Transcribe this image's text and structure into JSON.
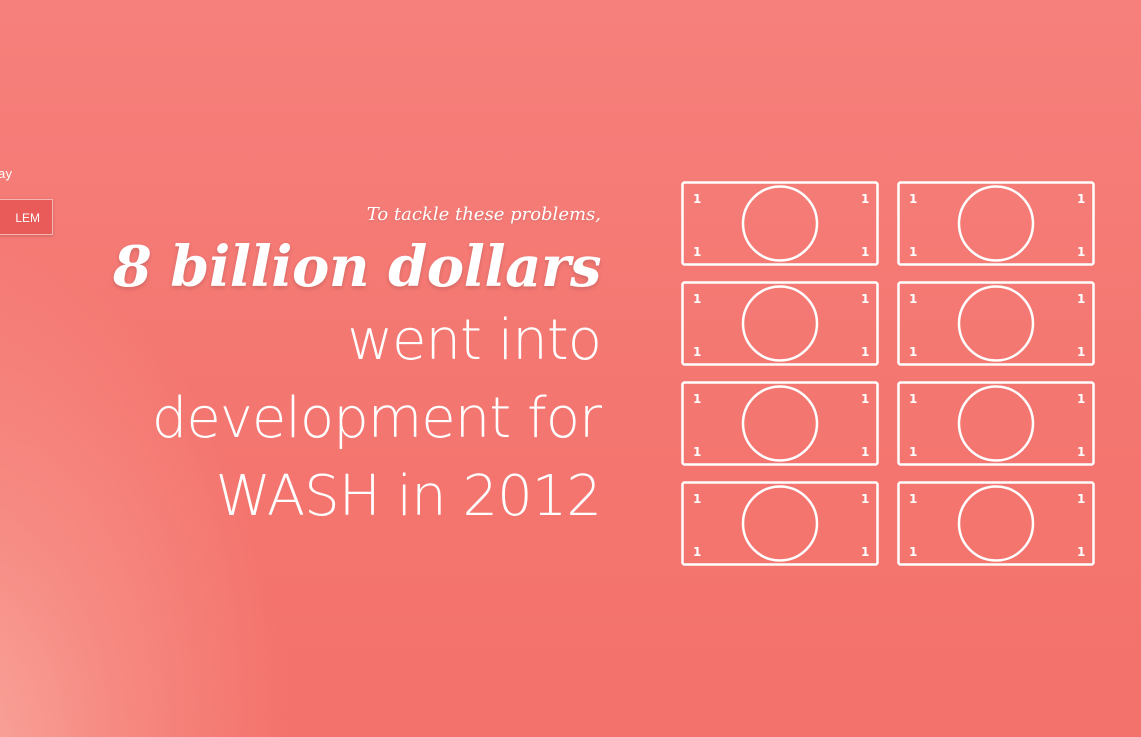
{
  "sidebar_fragment": {
    "text": "ay",
    "button_label": "LEM"
  },
  "main": {
    "lead_in": "To tackle these problems,",
    "headline": "8 billion dollars",
    "body_lines": [
      "went into",
      "development for",
      "WASH in 2012"
    ]
  },
  "bills": {
    "icon": "dollar-bill-icon",
    "count": 8,
    "denomination": "1",
    "color": "#ffffff"
  },
  "colors": {
    "background": "#f3786f",
    "glow": "#f9aba0",
    "button": "#e85b58",
    "text": "#ffffff"
  }
}
